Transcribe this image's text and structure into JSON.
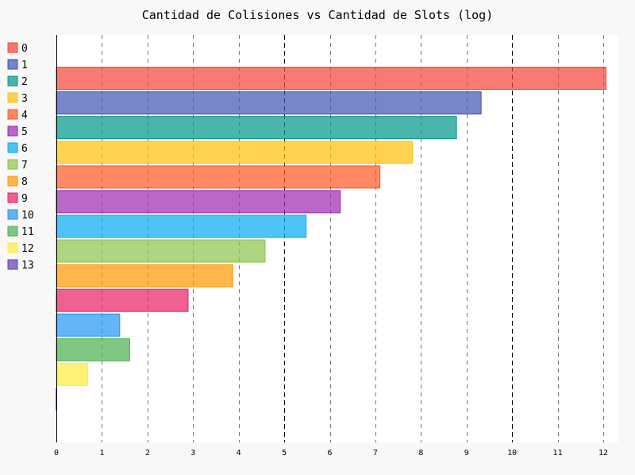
{
  "chart_data": {
    "type": "bar",
    "orientation": "horizontal",
    "title": "Cantidad de Colisiones vs Cantidad de Slots (log)",
    "xlabel": "",
    "ylabel": "",
    "xlim": [
      0,
      12.2
    ],
    "x_ticks": [
      "0",
      "1",
      "2",
      "3",
      "4",
      "5",
      "6",
      "7",
      "8",
      "9",
      "10",
      "11",
      "12"
    ],
    "major_ticks": [
      5,
      10
    ],
    "grid": true,
    "legend_position": "left",
    "series": [
      {
        "name": "0",
        "value": 12.06,
        "color": "#f44336"
      },
      {
        "name": "1",
        "value": 9.32,
        "color": "#3f51b5"
      },
      {
        "name": "2",
        "value": 8.78,
        "color": "#009688"
      },
      {
        "name": "3",
        "value": 7.81,
        "color": "#ffc107"
      },
      {
        "name": "4",
        "value": 7.1,
        "color": "#ff5722"
      },
      {
        "name": "5",
        "value": 6.23,
        "color": "#9c27b0"
      },
      {
        "name": "6",
        "value": 5.48,
        "color": "#03a9f4"
      },
      {
        "name": "7",
        "value": 4.58,
        "color": "#8bc34a"
      },
      {
        "name": "8",
        "value": 3.87,
        "color": "#ff9800"
      },
      {
        "name": "9",
        "value": 2.89,
        "color": "#e91e63"
      },
      {
        "name": "10",
        "value": 1.39,
        "color": "#2196f3"
      },
      {
        "name": "11",
        "value": 1.61,
        "color": "#4caf50"
      },
      {
        "name": "12",
        "value": 0.69,
        "color": "#ffeb3b"
      },
      {
        "name": "13",
        "value": 0,
        "color": "#673ab7"
      }
    ]
  }
}
